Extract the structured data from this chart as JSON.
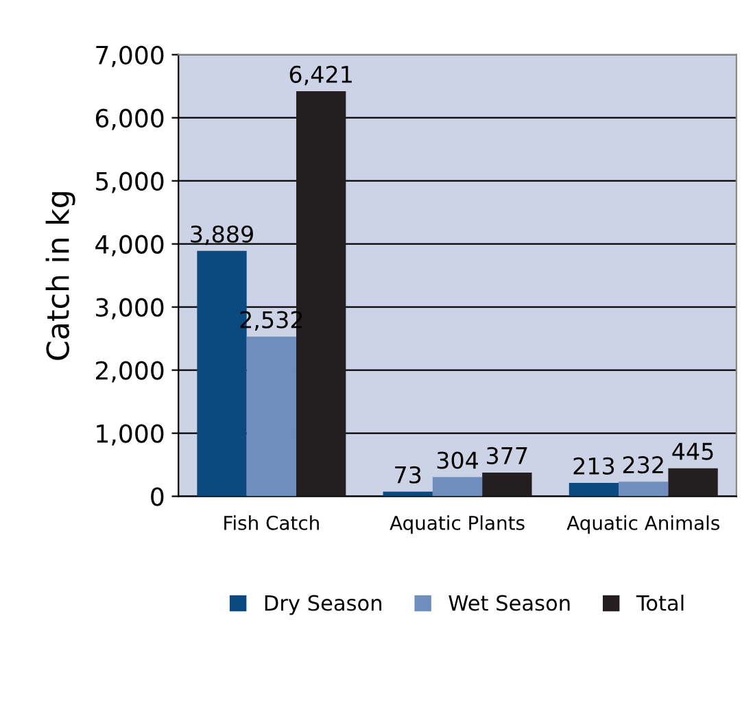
{
  "chart_data": {
    "type": "bar",
    "ylabel": "Catch in kg",
    "categories": [
      "Fish Catch",
      "Aquatic Plants",
      "Aquatic Animals"
    ],
    "series": [
      {
        "name": "Dry Season",
        "color": "#0b4a80",
        "values": [
          3889,
          73,
          213
        ],
        "value_labels": [
          "3,889",
          "73",
          "213"
        ]
      },
      {
        "name": "Wet Season",
        "color": "#6f8dbd",
        "values": [
          2532,
          304,
          232
        ],
        "value_labels": [
          "2,532",
          "304",
          "232"
        ]
      },
      {
        "name": "Total",
        "color": "#231f20",
        "values": [
          6421,
          377,
          445
        ],
        "value_labels": [
          "6,421",
          "377",
          "445"
        ]
      }
    ],
    "ylim": [
      0,
      7000
    ],
    "yticks": [
      0,
      {
        "value": 1000,
        "label": "1,000"
      },
      {
        "value": 2000,
        "label": "2,000"
      },
      {
        "value": 3000,
        "label": "3,000"
      },
      {
        "value": 4000,
        "label": "4,000"
      },
      {
        "value": 5000,
        "label": "5,000"
      },
      {
        "value": 6000,
        "label": "6,000"
      },
      {
        "value": 7000,
        "label": "7,000"
      }
    ],
    "grid": "y",
    "legend": "bottom"
  }
}
